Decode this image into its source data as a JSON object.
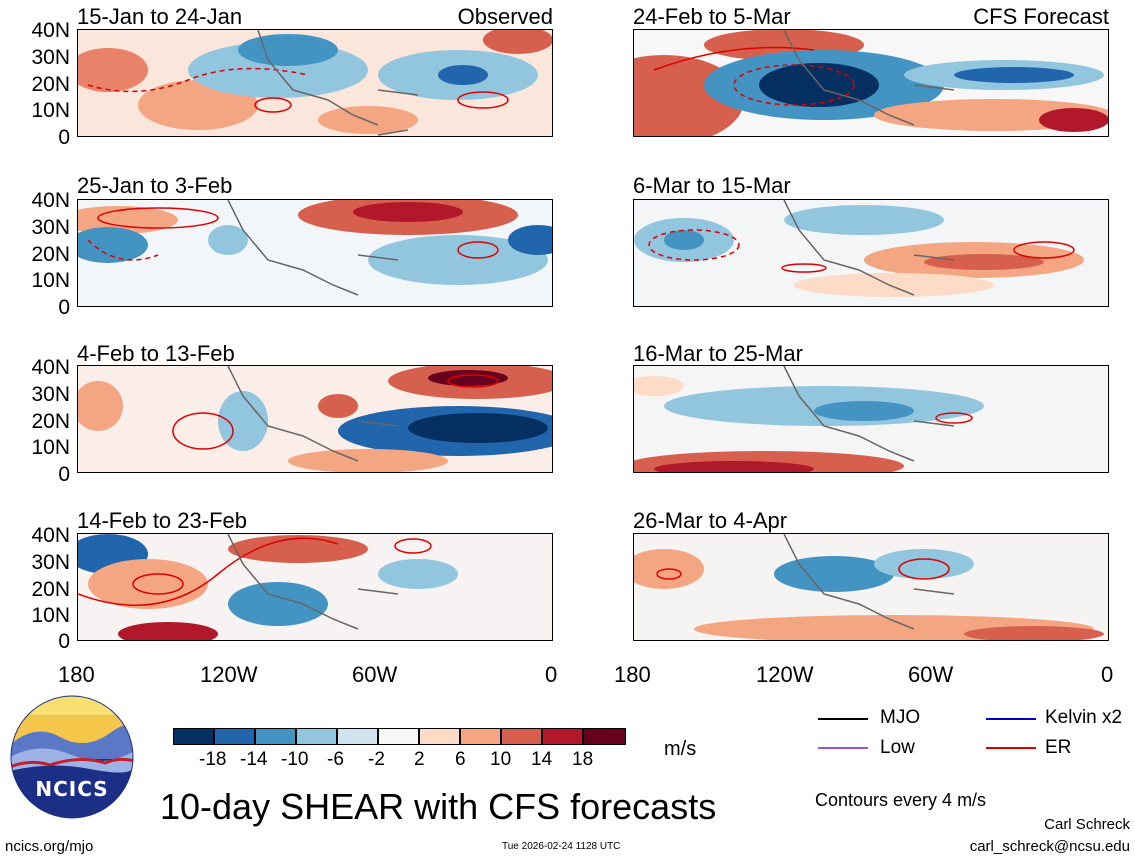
{
  "panels": [
    {
      "title": "15-Jan to 24-Jan",
      "right_label": "Observed"
    },
    {
      "title": "25-Jan to 3-Feb",
      "right_label": ""
    },
    {
      "title": "4-Feb to 13-Feb",
      "right_label": ""
    },
    {
      "title": "14-Feb to 23-Feb",
      "right_label": ""
    },
    {
      "title": "24-Feb to 5-Mar",
      "right_label": "CFS Forecast"
    },
    {
      "title": "6-Mar to 15-Mar",
      "right_label": ""
    },
    {
      "title": "16-Mar to 25-Mar",
      "right_label": ""
    },
    {
      "title": "26-Mar to 4-Apr",
      "right_label": ""
    }
  ],
  "lat_labels": [
    "40N",
    "30N",
    "20N",
    "10N",
    "0"
  ],
  "lon_labels": [
    "180",
    "120W",
    "60W",
    "0"
  ],
  "colorbar": {
    "labels": [
      "-18",
      "-14",
      "-10",
      "-6",
      "-2",
      "2",
      "6",
      "10",
      "14",
      "18"
    ],
    "colors": [
      "#053061",
      "#2166ac",
      "#4393c3",
      "#92c5de",
      "#d1e5f0",
      "#f7f7f7",
      "#fddbc7",
      "#f4a582",
      "#d6604d",
      "#b2182b",
      "#67001f"
    ],
    "units": "m/s"
  },
  "legend": [
    {
      "label": "MJO",
      "color": "#000000"
    },
    {
      "label": "Kelvin x2",
      "color": "#0000cc"
    },
    {
      "label": "Low",
      "color": "#9955dd"
    },
    {
      "label": "ER",
      "color": "#dd0000"
    }
  ],
  "contour_note": "Contours every 4 m/s",
  "main_title": "10-day SHEAR with CFS forecasts",
  "logo_text": "NCICS",
  "url": "ncics.org/mjo",
  "timestamp": "Tue 2026-02-24 1128 UTC",
  "author": "Carl Schreck",
  "email": "carl_schreck@ncsu.edu"
}
